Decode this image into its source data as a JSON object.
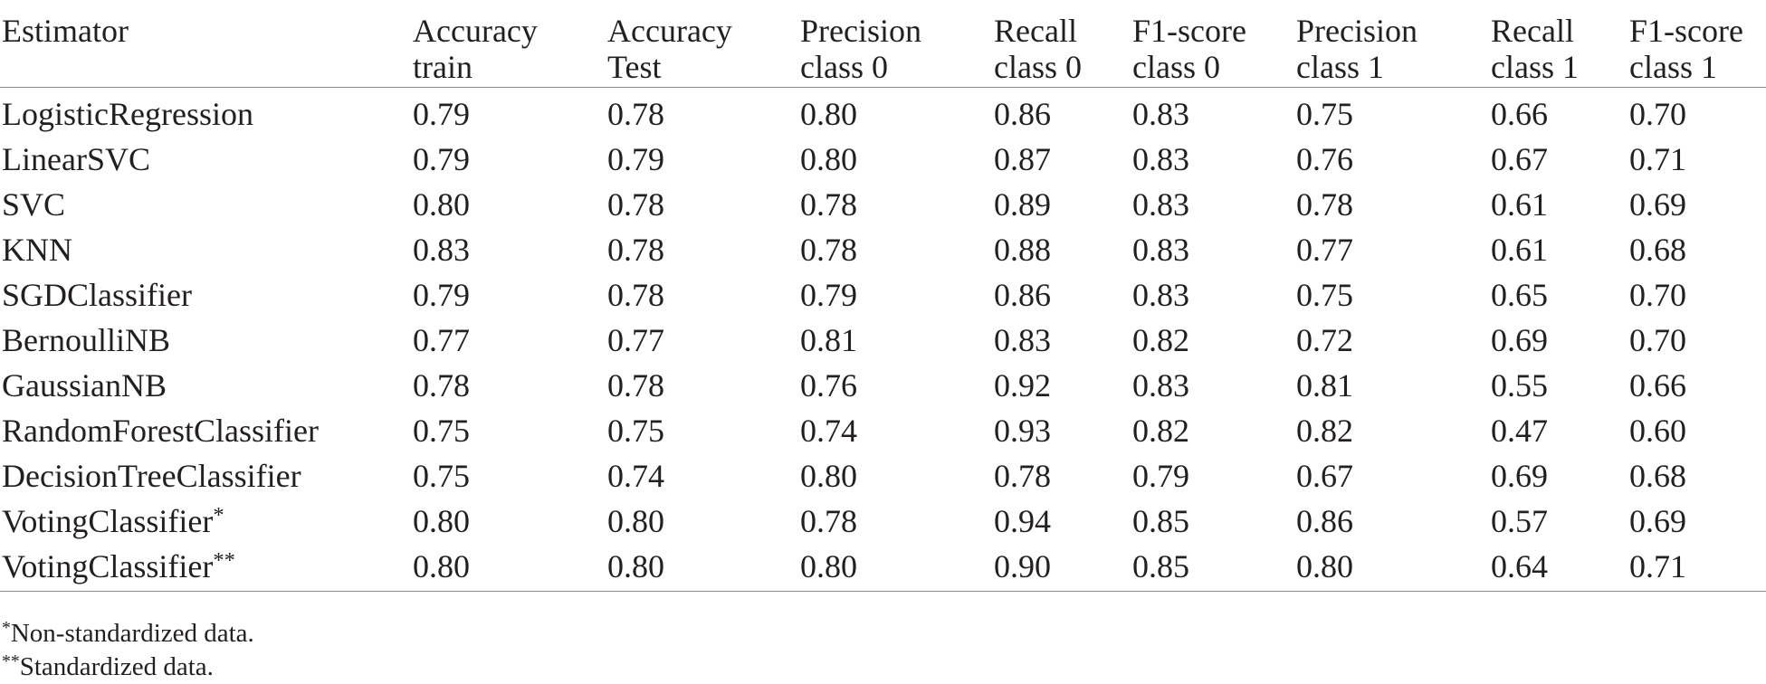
{
  "table": {
    "headers": [
      [
        "Estimator",
        ""
      ],
      [
        "Accuracy",
        "train"
      ],
      [
        "Accuracy",
        "Test"
      ],
      [
        "Precision",
        "class 0"
      ],
      [
        "Recall",
        "class 0"
      ],
      [
        "F1-score",
        "class 0"
      ],
      [
        "Precision",
        "class 1"
      ],
      [
        "Recall",
        "class 1"
      ],
      [
        "F1-score",
        "class 1"
      ]
    ],
    "rows": [
      {
        "name": "LogisticRegression",
        "mark": "",
        "values": [
          "0.79",
          "0.78",
          "0.80",
          "0.86",
          "0.83",
          "0.75",
          "0.66",
          "0.70"
        ]
      },
      {
        "name": "LinearSVC",
        "mark": "",
        "values": [
          "0.79",
          "0.79",
          "0.80",
          "0.87",
          "0.83",
          "0.76",
          "0.67",
          "0.71"
        ]
      },
      {
        "name": "SVC",
        "mark": "",
        "values": [
          "0.80",
          "0.78",
          "0.78",
          "0.89",
          "0.83",
          "0.78",
          "0.61",
          "0.69"
        ]
      },
      {
        "name": "KNN",
        "mark": "",
        "values": [
          "0.83",
          "0.78",
          "0.78",
          "0.88",
          "0.83",
          "0.77",
          "0.61",
          "0.68"
        ]
      },
      {
        "name": "SGDClassifier",
        "mark": "",
        "values": [
          "0.79",
          "0.78",
          "0.79",
          "0.86",
          "0.83",
          "0.75",
          "0.65",
          "0.70"
        ]
      },
      {
        "name": "BernoulliNB",
        "mark": "",
        "values": [
          "0.77",
          "0.77",
          "0.81",
          "0.83",
          "0.82",
          "0.72",
          "0.69",
          "0.70"
        ]
      },
      {
        "name": "GaussianNB",
        "mark": "",
        "values": [
          "0.78",
          "0.78",
          "0.76",
          "0.92",
          "0.83",
          "0.81",
          "0.55",
          "0.66"
        ]
      },
      {
        "name": "RandomForestClassifier",
        "mark": "",
        "values": [
          "0.75",
          "0.75",
          "0.74",
          "0.93",
          "0.82",
          "0.82",
          "0.47",
          "0.60"
        ]
      },
      {
        "name": "DecisionTreeClassifier",
        "mark": "",
        "values": [
          "0.75",
          "0.74",
          "0.80",
          "0.78",
          "0.79",
          "0.67",
          "0.69",
          "0.68"
        ]
      },
      {
        "name": "VotingClassifier",
        "mark": "*",
        "values": [
          "0.80",
          "0.80",
          "0.78",
          "0.94",
          "0.85",
          "0.86",
          "0.57",
          "0.69"
        ]
      },
      {
        "name": "VotingClassifier",
        "mark": "**",
        "values": [
          "0.80",
          "0.80",
          "0.80",
          "0.90",
          "0.85",
          "0.80",
          "0.64",
          "0.71"
        ]
      }
    ]
  },
  "footnotes": [
    {
      "mark": "*",
      "text": "Non-standardized data."
    },
    {
      "mark": "**",
      "text": "Standardized data."
    }
  ]
}
